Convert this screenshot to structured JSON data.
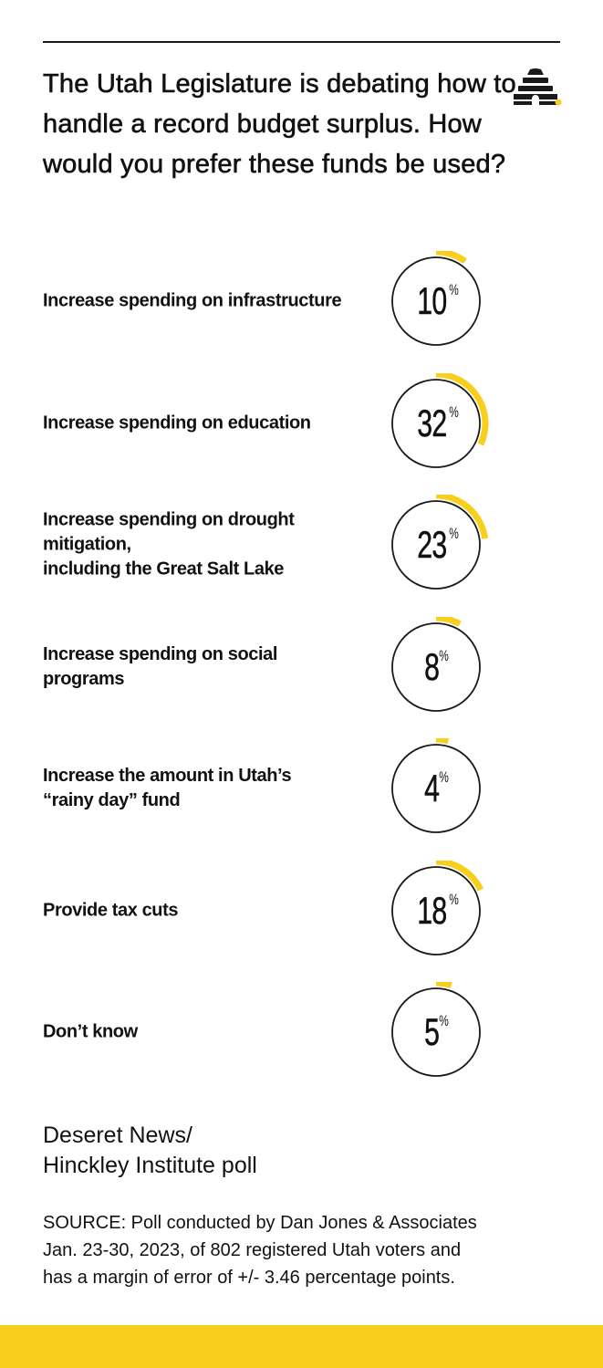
{
  "header": {
    "title": "The Utah Legislature is debating how to handle a record budget surplus. How would you prefer these funds be used?"
  },
  "chart_data": {
    "type": "bar",
    "title": "The Utah Legislature is debating how to handle a record budget surplus. How would you prefer these funds be used?",
    "unit": "%",
    "categories": [
      "Increase spending on infrastructure",
      "Increase spending on education",
      "Increase spending on drought mitigation, including the Great Salt Lake",
      "Increase spending on social programs",
      "Increase the amount in Utah’s “rainy day” fund",
      "Provide tax cuts",
      "Don’t know"
    ],
    "category_lines": [
      [
        "Increase spending on infrastructure"
      ],
      [
        "Increase spending on education"
      ],
      [
        "Increase spending on drought mitigation,",
        "including the Great Salt Lake"
      ],
      [
        "Increase spending on social programs"
      ],
      [
        "Increase the amount in Utah’s",
        "“rainy day” fund"
      ],
      [
        "Provide tax cuts"
      ],
      [
        "Don’t know"
      ]
    ],
    "values": [
      10,
      32,
      23,
      8,
      4,
      18,
      5
    ],
    "colors": {
      "arc": "#f8cf1c",
      "ring": "#1a1a1a"
    }
  },
  "footer": {
    "source_title_lines": [
      "Deseret News/",
      "Hinckley Institute poll"
    ],
    "source_note_lines": [
      "SOURCE: Poll conducted by Dan Jones & Associates",
      "Jan. 23-30, 2023, of 802 registered Utah voters and",
      "has a margin of error of +/- 3.46 percentage points."
    ]
  },
  "colors": {
    "accent": "#f8cf1c",
    "text": "#111111",
    "background": "#ffffff"
  },
  "icons": {
    "logo": "beehive-icon"
  }
}
